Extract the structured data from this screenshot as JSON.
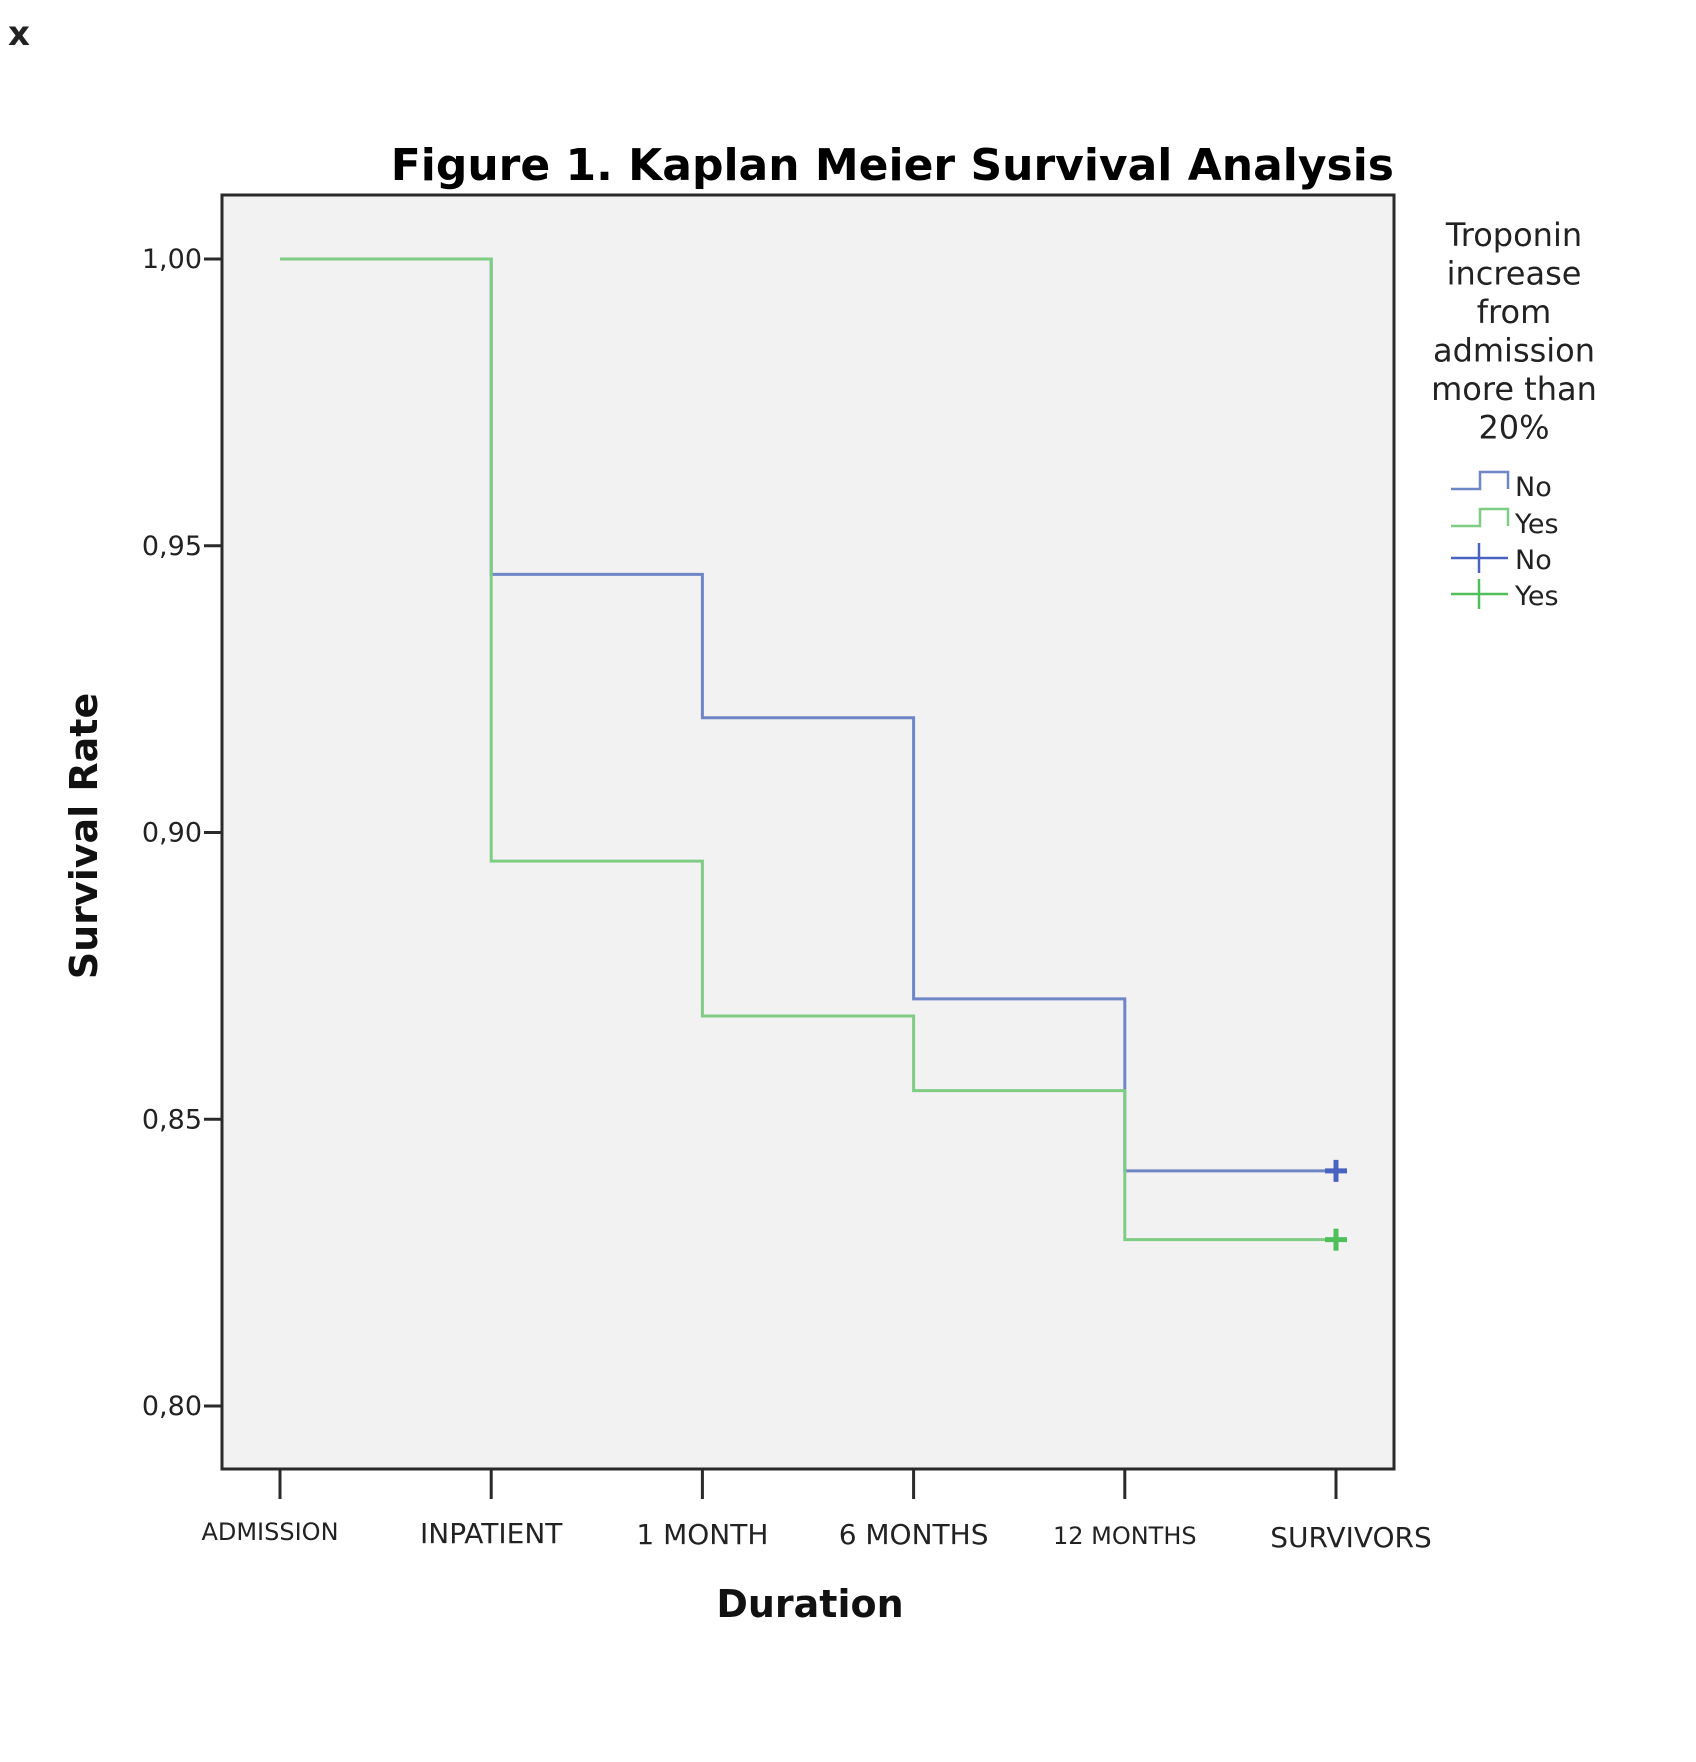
{
  "close_label": "x",
  "chart_data": {
    "type": "line",
    "subtype": "kaplan-meier-step",
    "title": "Figure 1. Kaplan Meier Survival Analysis",
    "xlabel": "Duration",
    "ylabel": "Survival Rate",
    "categories": [
      "ADMISSION",
      "INPATIENT",
      "1 MONTH",
      "6 MONTHS",
      "12 MONTHS",
      "SURVIVORS"
    ],
    "yticks": [
      1.0,
      0.95,
      0.9,
      0.85,
      0.8
    ],
    "ytick_labels": [
      "1,00",
      "0,95",
      "0,90",
      "0,85",
      "0,80"
    ],
    "ylim": [
      0.789,
      1.011
    ],
    "grid": false,
    "legend": {
      "title": [
        "Troponin",
        "increase",
        "from",
        "admission",
        "more than",
        "20%"
      ],
      "placement": "right",
      "entries": [
        {
          "label": "No",
          "kind": "survival-function",
          "color": "#6f86c6"
        },
        {
          "label": "Yes",
          "kind": "survival-function",
          "color": "#7fcc85"
        },
        {
          "label": "No",
          "kind": "censored",
          "color": "#4a62c0"
        },
        {
          "label": "Yes",
          "kind": "censored",
          "color": "#4fbf5a"
        }
      ]
    },
    "series": [
      {
        "name": "No",
        "color": "#6f86c6",
        "censor_color": "#4a62c0",
        "values": [
          1.0,
          0.945,
          0.92,
          0.871,
          0.841
        ],
        "censored_at": {
          "category": "SURVIVORS",
          "value": 0.841
        }
      },
      {
        "name": "Yes",
        "color": "#7fcc85",
        "censor_color": "#4fbf5a",
        "values": [
          1.0,
          0.895,
          0.868,
          0.855,
          0.829
        ],
        "censored_at": {
          "category": "SURVIVORS",
          "value": 0.829
        }
      }
    ]
  }
}
